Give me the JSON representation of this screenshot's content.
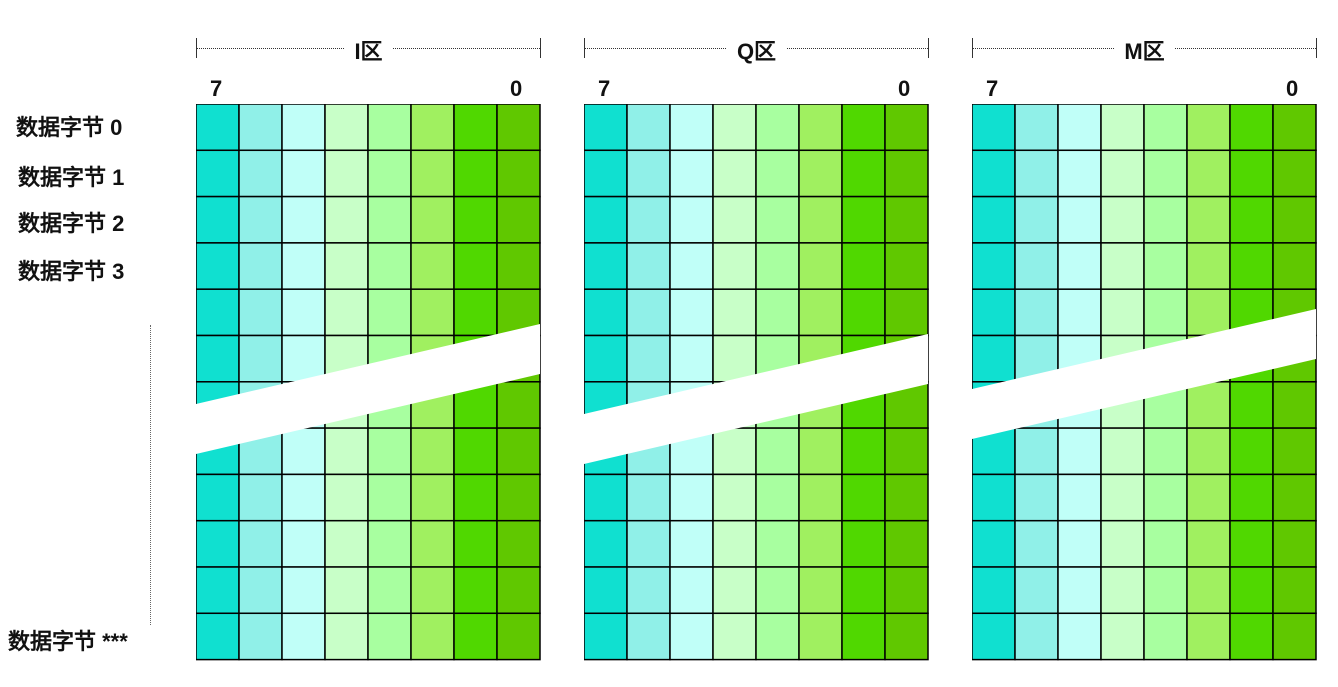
{
  "zones": [
    {
      "title": "I区",
      "bit_high": "7",
      "bit_low": "0"
    },
    {
      "title": "Q区",
      "bit_high": "7",
      "bit_low": "0"
    },
    {
      "title": "M区",
      "bit_high": "7",
      "bit_low": "0"
    }
  ],
  "row_labels": [
    "数据字节 0",
    "数据字节 1",
    "数据字节 2",
    "数据字节 3",
    "数据字节 ***"
  ],
  "colors": {
    "columns": [
      "#10e0d0",
      "#90f0e8",
      "#c0fff8",
      "#c8ffc8",
      "#a8ffa0",
      "#a0f060",
      "#50d800",
      "#60c800"
    ],
    "grid_line": "#000000",
    "break_gap": "#ffffff"
  }
}
